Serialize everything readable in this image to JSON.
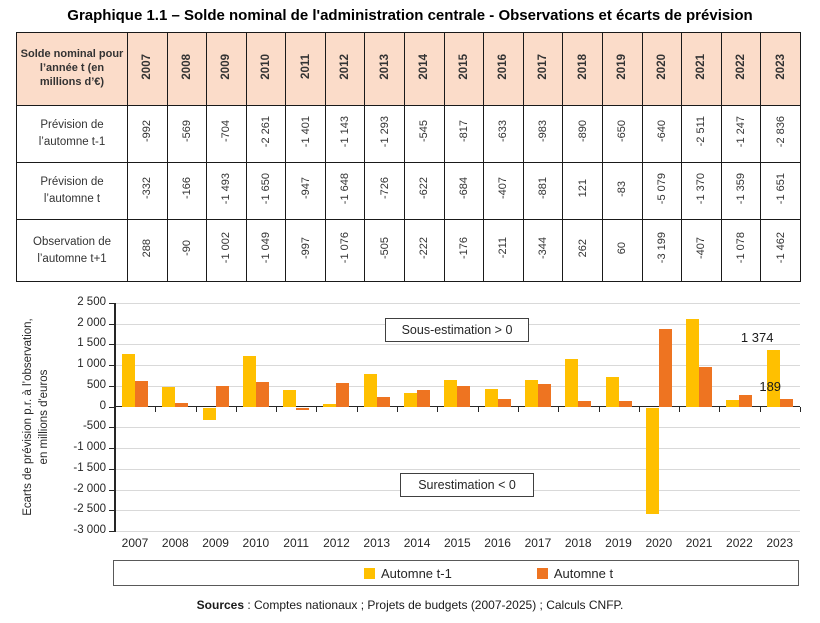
{
  "title": "Graphique 1.1 – Solde nominal de l'administration centrale - Observations et écarts de prévision",
  "table": {
    "corner_label": "Solde nominal pour l’année t (en millions d’€)",
    "years": [
      "2007",
      "2008",
      "2009",
      "2010",
      "2011",
      "2012",
      "2013",
      "2014",
      "2015",
      "2016",
      "2017",
      "2018",
      "2019",
      "2020",
      "2021",
      "2022",
      "2023"
    ],
    "rows": [
      {
        "label": "Prévision de l’automne t-1",
        "values": [
          "-992",
          "-569",
          "-704",
          "-2 261",
          "-1 401",
          "-1 143",
          "-1 293",
          "-545",
          "-817",
          "-633",
          "-983",
          "-890",
          "-650",
          "-640",
          "-2 511",
          "-1 247",
          "-2 836"
        ]
      },
      {
        "label": "Prévision de l’automne t",
        "values": [
          "-332",
          "-166",
          "-1 493",
          "-1 650",
          "-947",
          "-1 648",
          "-726",
          "-622",
          "-684",
          "-407",
          "-881",
          "121",
          "-83",
          "-5 079",
          "-1 370",
          "-1 359",
          "-1 651"
        ]
      },
      {
        "label": "Observation de l’automne t+1",
        "values": [
          "288",
          "-90",
          "-1 002",
          "-1 049",
          "-997",
          "-1 076",
          "-505",
          "-222",
          "-176",
          "-211",
          "-344",
          "262",
          "60",
          "-3 199",
          "-407",
          "-1 078",
          "-1 462"
        ]
      }
    ],
    "header_bg": "#FBDCC9"
  },
  "chart_data": {
    "type": "bar",
    "title": "",
    "categories": [
      "2007",
      "2008",
      "2009",
      "2010",
      "2011",
      "2012",
      "2013",
      "2014",
      "2015",
      "2016",
      "2017",
      "2018",
      "2019",
      "2020",
      "2021",
      "2022",
      "2023"
    ],
    "series": [
      {
        "name": "Automne t-1",
        "color": "#FFC000",
        "values": [
          1280,
          479,
          -298,
          1212,
          404,
          67,
          788,
          323,
          641,
          422,
          639,
          1152,
          710,
          -2559,
          2104,
          169,
          1374
        ]
      },
      {
        "name": "Automne t",
        "color": "#EE7421",
        "values": [
          620,
          76,
          491,
          601,
          -50,
          572,
          221,
          400,
          508,
          196,
          537,
          141,
          143,
          1880,
          963,
          281,
          189
        ]
      }
    ],
    "ylabel_line1": "Ecarts de prévision p.r. à l’observation,",
    "ylabel_line2": "en millions d'euros",
    "ylim": [
      -3000,
      2500
    ],
    "ytick_step": 500,
    "yticks": [
      "2 500",
      "2 000",
      "1 500",
      "1 000",
      "500",
      "0",
      "-500",
      "-1 000",
      "-1 500",
      "-2 000",
      "-2 500",
      "-3 000"
    ],
    "grid": true,
    "legend_position": "bottom",
    "annotations": [
      {
        "text": "Sous-estimation > 0"
      },
      {
        "text": "Surestimation < 0"
      }
    ],
    "data_labels": [
      {
        "text": "1 374",
        "series": 0,
        "index": 16
      },
      {
        "text": "189",
        "series": 1,
        "index": 16
      }
    ]
  },
  "source": {
    "prefix": "Sources",
    "rest": " : Comptes nationaux ; Projets de budgets (2007-2025) ; Calculs CNFP."
  }
}
